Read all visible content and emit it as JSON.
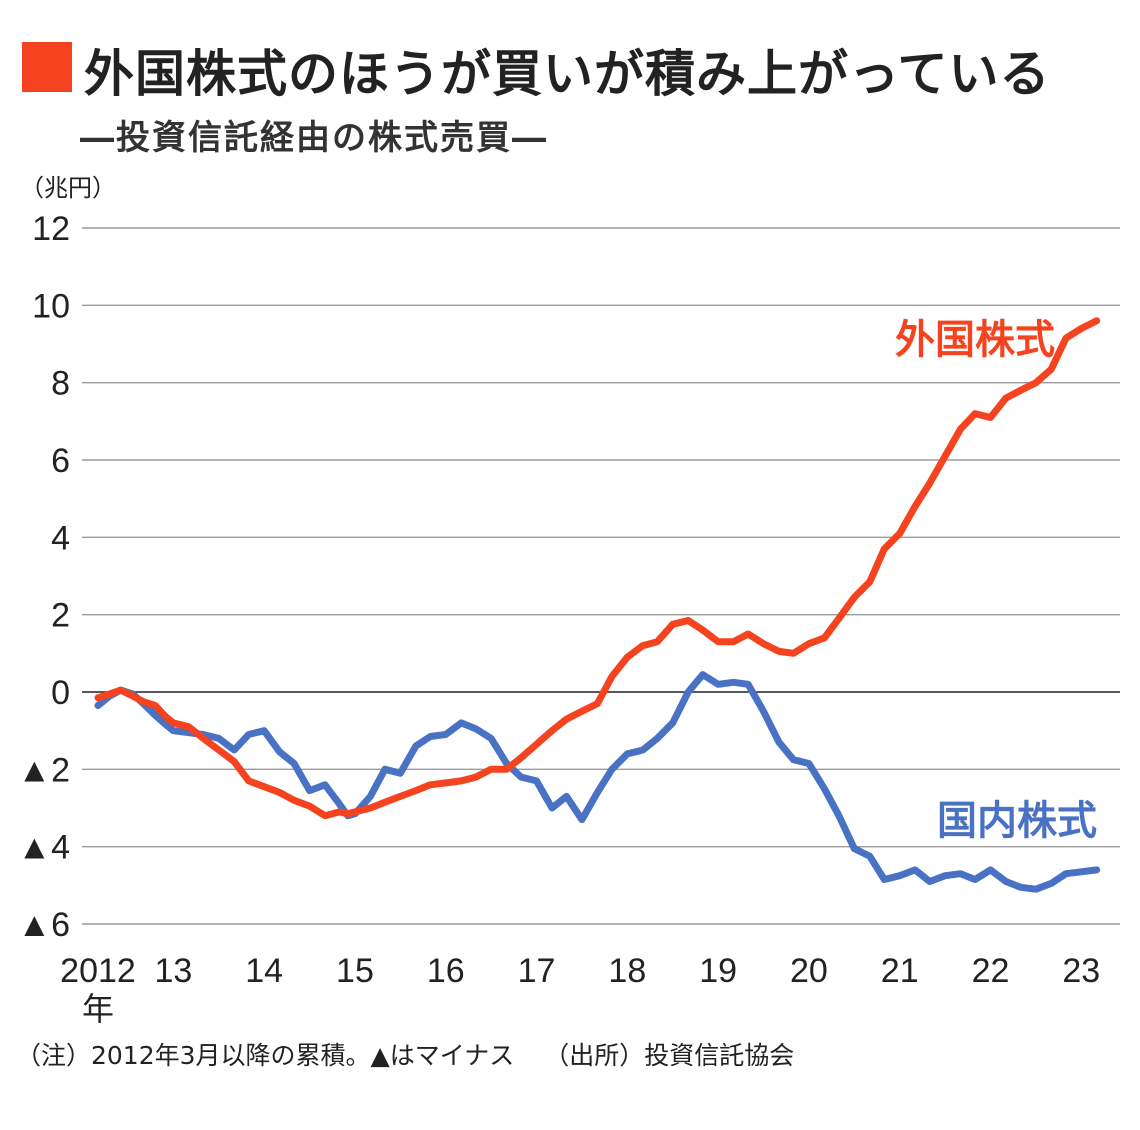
{
  "title": "外国株式のほうが買いが積み上がっている",
  "subtitle": "―投資信託経由の株式売買―",
  "unit": "（兆円）",
  "note": "（注）2012年3月以降の累積。▲はマイナス",
  "source": "（出所）投資信託協会",
  "colors": {
    "title_box": "#f4431e"
  },
  "chart_data": {
    "type": "line",
    "xlim": [
      2012.17,
      2023.25
    ],
    "ylim": [
      -6,
      12
    ],
    "y_ticks": [
      12,
      10,
      8,
      6,
      4,
      2,
      0,
      -2,
      -4,
      -6
    ],
    "y_tick_labels": [
      "12",
      "10",
      "8",
      "6",
      "4",
      "2",
      "0",
      "▲2",
      "▲4",
      "▲6"
    ],
    "x_ticks": [
      2012,
      2013,
      2014,
      2015,
      2016,
      2017,
      2018,
      2019,
      2020,
      2021,
      2022,
      2023
    ],
    "x_tick_labels": [
      "2012",
      "13",
      "14",
      "15",
      "16",
      "17",
      "18",
      "19",
      "20",
      "21",
      "22",
      "23"
    ],
    "x_first_suffix": "年",
    "grid": true,
    "series": [
      {
        "name": "外国株式",
        "color": "#f4431e",
        "x": [
          2012.17,
          2012.3,
          2012.42,
          2012.55,
          2012.67,
          2012.8,
          2012.92,
          2013.0,
          2013.17,
          2013.33,
          2013.5,
          2013.67,
          2013.83,
          2014.0,
          2014.17,
          2014.33,
          2014.5,
          2014.67,
          2014.83,
          2014.92,
          2015.0,
          2015.17,
          2015.33,
          2015.5,
          2015.67,
          2015.83,
          2016.0,
          2016.17,
          2016.33,
          2016.5,
          2016.67,
          2016.83,
          2017.0,
          2017.17,
          2017.33,
          2017.5,
          2017.67,
          2017.83,
          2018.0,
          2018.17,
          2018.33,
          2018.5,
          2018.67,
          2018.83,
          2019.0,
          2019.17,
          2019.33,
          2019.5,
          2019.67,
          2019.83,
          2020.0,
          2020.17,
          2020.33,
          2020.5,
          2020.67,
          2020.83,
          2021.0,
          2021.17,
          2021.33,
          2021.5,
          2021.67,
          2021.83,
          2022.0,
          2022.17,
          2022.33,
          2022.5,
          2022.67,
          2022.83,
          2023.0,
          2023.17
        ],
        "values": [
          -0.15,
          -0.05,
          0.05,
          -0.1,
          -0.25,
          -0.35,
          -0.65,
          -0.8,
          -0.9,
          -1.2,
          -1.5,
          -1.8,
          -2.3,
          -2.45,
          -2.6,
          -2.8,
          -2.95,
          -3.2,
          -3.1,
          -3.15,
          -3.1,
          -3.0,
          -2.85,
          -2.7,
          -2.55,
          -2.4,
          -2.35,
          -2.3,
          -2.2,
          -2.0,
          -2.0,
          -1.7,
          -1.35,
          -1.0,
          -0.7,
          -0.5,
          -0.3,
          0.4,
          0.9,
          1.2,
          1.3,
          1.75,
          1.85,
          1.6,
          1.3,
          1.3,
          1.5,
          1.25,
          1.05,
          1.0,
          1.25,
          1.4,
          1.9,
          2.45,
          2.85,
          3.7,
          4.1,
          4.8,
          5.4,
          6.1,
          6.8,
          7.2,
          7.1,
          7.6,
          7.8,
          8.0,
          8.35,
          9.15,
          9.4,
          9.6
        ]
      },
      {
        "name": "国内株式",
        "color": "#4a72c4",
        "x": [
          2012.17,
          2012.3,
          2012.42,
          2012.55,
          2012.67,
          2012.8,
          2012.92,
          2013.0,
          2013.17,
          2013.33,
          2013.5,
          2013.67,
          2013.83,
          2014.0,
          2014.17,
          2014.33,
          2014.5,
          2014.67,
          2014.83,
          2014.92,
          2015.0,
          2015.17,
          2015.33,
          2015.5,
          2015.67,
          2015.83,
          2016.0,
          2016.17,
          2016.33,
          2016.5,
          2016.67,
          2016.83,
          2017.0,
          2017.17,
          2017.33,
          2017.5,
          2017.67,
          2017.83,
          2018.0,
          2018.17,
          2018.33,
          2018.5,
          2018.67,
          2018.83,
          2019.0,
          2019.17,
          2019.33,
          2019.5,
          2019.67,
          2019.83,
          2020.0,
          2020.17,
          2020.33,
          2020.5,
          2020.67,
          2020.83,
          2021.0,
          2021.17,
          2021.33,
          2021.5,
          2021.67,
          2021.83,
          2022.0,
          2022.17,
          2022.33,
          2022.5,
          2022.67,
          2022.83,
          2023.0,
          2023.17
        ],
        "values": [
          -0.35,
          -0.1,
          0.05,
          -0.05,
          -0.3,
          -0.6,
          -0.85,
          -1.0,
          -1.05,
          -1.1,
          -1.2,
          -1.5,
          -1.1,
          -1.0,
          -1.55,
          -1.85,
          -2.55,
          -2.4,
          -2.9,
          -3.2,
          -3.15,
          -2.7,
          -2.0,
          -2.1,
          -1.4,
          -1.15,
          -1.1,
          -0.8,
          -0.95,
          -1.2,
          -1.85,
          -2.2,
          -2.3,
          -3.0,
          -2.7,
          -3.3,
          -2.6,
          -2.0,
          -1.6,
          -1.5,
          -1.2,
          -0.8,
          0.0,
          0.45,
          0.2,
          0.25,
          0.2,
          -0.5,
          -1.3,
          -1.75,
          -1.85,
          -2.5,
          -3.2,
          -4.05,
          -4.25,
          -4.85,
          -4.75,
          -4.6,
          -4.9,
          -4.75,
          -4.7,
          -4.85,
          -4.6,
          -4.9,
          -5.05,
          -5.1,
          -4.95,
          -4.7,
          -4.65,
          -4.6
        ]
      }
    ]
  }
}
